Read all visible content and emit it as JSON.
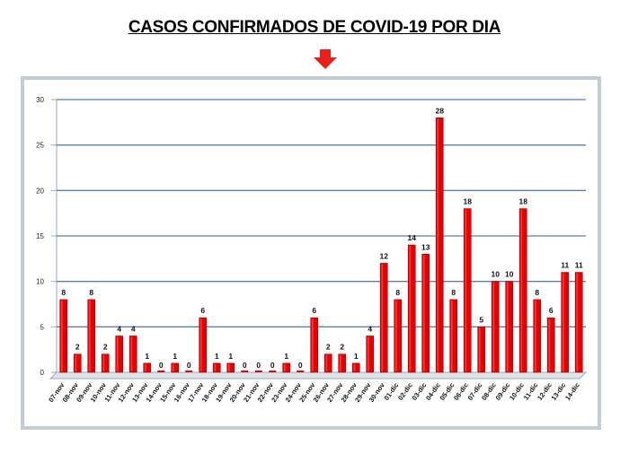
{
  "title": "CASOS CONFIRMADOS DE COVID-19 POR DIA",
  "colors": {
    "bar": "#e80000",
    "gridline": "#4f81bd",
    "arrow": "#e8201a"
  },
  "chart_data": {
    "type": "bar",
    "title": "",
    "xlabel": "",
    "ylabel": "",
    "ylim": [
      0,
      30
    ],
    "yticks": [
      0,
      5,
      10,
      15,
      20,
      25,
      30
    ],
    "grid": true,
    "categories": [
      "07-nov",
      "08-nov",
      "09-nov",
      "10-nov",
      "11-nov",
      "12-nov",
      "13-nov",
      "14-nov",
      "15-nov",
      "16-nov",
      "17-nov",
      "18-nov",
      "19-nov",
      "20-nov",
      "21-nov",
      "22-nov",
      "23-nov",
      "24-nov",
      "25-nov",
      "26-nov",
      "27-nov",
      "28-nov",
      "29-nov",
      "30-nov",
      "01-dic",
      "02-dic",
      "03-dic",
      "04-dic",
      "05-dic",
      "06-dic",
      "07-dic",
      "08-dic",
      "09-dic",
      "10-dic",
      "11-dic",
      "12-dic",
      "13-dic",
      "14-dic"
    ],
    "values": [
      8,
      2,
      8,
      2,
      4,
      4,
      1,
      0,
      1,
      0,
      6,
      1,
      1,
      0,
      0,
      0,
      1,
      0,
      6,
      2,
      2,
      1,
      4,
      12,
      8,
      14,
      13,
      28,
      8,
      18,
      5,
      10,
      10,
      18,
      8,
      6,
      11,
      11
    ]
  }
}
